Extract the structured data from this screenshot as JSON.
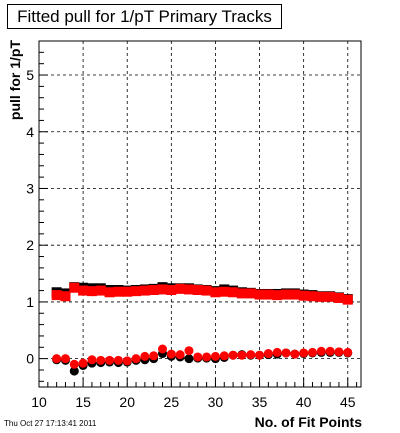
{
  "chart_data": {
    "type": "scatter",
    "title": "Fitted pull for 1/pT Primary Tracks",
    "xlabel": "No. of Fit Points",
    "ylabel": "pull for 1/pT",
    "xlim": [
      10,
      46.5
    ],
    "ylim": [
      -0.5,
      5.6
    ],
    "xticks": [
      10,
      15,
      20,
      25,
      30,
      35,
      40,
      45
    ],
    "yticks": [
      0,
      1,
      2,
      3,
      4,
      5
    ],
    "grid": true,
    "series": [
      {
        "color": "#000000",
        "marker": "square",
        "x": [
          12,
          13,
          14,
          15,
          16,
          17,
          18,
          19,
          20,
          21,
          22,
          23,
          24,
          25,
          26,
          27,
          28,
          29,
          30,
          31,
          32,
          33,
          34,
          35,
          36,
          37,
          38,
          39,
          40,
          41,
          42,
          43,
          44,
          45
        ],
        "y": [
          1.17,
          1.15,
          1.26,
          1.25,
          1.24,
          1.24,
          1.21,
          1.21,
          1.2,
          1.21,
          1.22,
          1.23,
          1.26,
          1.24,
          1.24,
          1.24,
          1.22,
          1.21,
          1.19,
          1.22,
          1.2,
          1.17,
          1.16,
          1.14,
          1.14,
          1.14,
          1.15,
          1.15,
          1.13,
          1.12,
          1.1,
          1.1,
          1.08,
          1.05
        ]
      },
      {
        "color": "#ff0000",
        "marker": "square",
        "x": [
          12,
          13,
          14,
          15,
          16,
          17,
          18,
          19,
          20,
          21,
          22,
          23,
          24,
          25,
          26,
          27,
          28,
          29,
          30,
          31,
          32,
          33,
          34,
          35,
          36,
          37,
          38,
          39,
          40,
          41,
          42,
          43,
          44,
          45
        ],
        "y": [
          1.12,
          1.1,
          1.25,
          1.2,
          1.19,
          1.2,
          1.17,
          1.18,
          1.18,
          1.19,
          1.2,
          1.21,
          1.22,
          1.21,
          1.23,
          1.22,
          1.21,
          1.2,
          1.17,
          1.18,
          1.17,
          1.15,
          1.15,
          1.13,
          1.13,
          1.12,
          1.13,
          1.13,
          1.11,
          1.1,
          1.09,
          1.09,
          1.07,
          1.04
        ]
      },
      {
        "color": "#000000",
        "marker": "circle",
        "x": [
          12,
          13,
          14,
          15,
          16,
          17,
          18,
          19,
          20,
          21,
          22,
          23,
          24,
          25,
          26,
          27,
          28,
          29,
          30,
          31,
          32,
          33,
          34,
          35,
          36,
          37,
          38,
          39,
          40,
          41,
          42,
          43,
          44,
          45
        ],
        "y": [
          -0.02,
          -0.03,
          -0.22,
          -0.12,
          -0.08,
          -0.07,
          -0.06,
          -0.07,
          -0.06,
          -0.03,
          -0.02,
          0.0,
          0.09,
          0.04,
          0.03,
          0.0,
          0.01,
          0.01,
          0.0,
          0.02,
          0.06,
          0.07,
          0.06,
          0.06,
          0.07,
          0.08,
          0.1,
          0.08,
          0.09,
          0.1,
          0.11,
          0.11,
          0.11,
          0.1
        ]
      },
      {
        "color": "#ff0000",
        "marker": "circle",
        "x": [
          12,
          13,
          14,
          15,
          16,
          17,
          18,
          19,
          20,
          21,
          22,
          23,
          24,
          25,
          26,
          27,
          28,
          29,
          30,
          31,
          32,
          33,
          34,
          35,
          36,
          37,
          38,
          39,
          40,
          41,
          42,
          43,
          44,
          45
        ],
        "y": [
          0.0,
          0.0,
          -0.1,
          -0.08,
          -0.02,
          -0.03,
          -0.03,
          -0.03,
          -0.04,
          0.0,
          0.04,
          0.05,
          0.17,
          0.08,
          0.07,
          0.14,
          0.03,
          0.03,
          0.04,
          0.05,
          0.06,
          0.06,
          0.07,
          0.06,
          0.09,
          0.11,
          0.1,
          0.08,
          0.1,
          0.11,
          0.13,
          0.13,
          0.12,
          0.11
        ]
      }
    ]
  },
  "timestamp": "Thu Oct 27 17:13:41 2011"
}
